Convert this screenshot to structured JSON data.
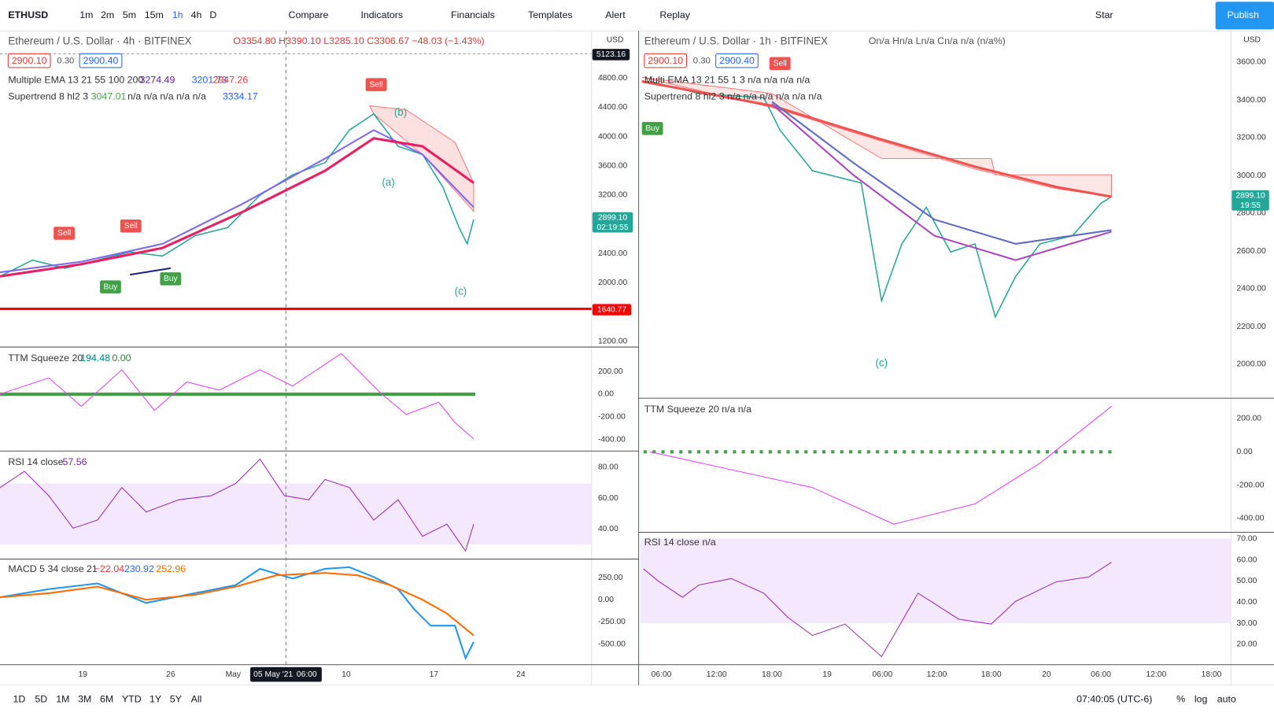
{
  "toolbar": {
    "symbol": "ETHUSD",
    "intervals": [
      "1m",
      "2m",
      "5m",
      "15m",
      "1h",
      "4h",
      "D"
    ],
    "buttons": [
      "Compare",
      "Indicators",
      "Financials",
      "Templates",
      "Alert",
      "Replay",
      "Star",
      "Publish"
    ]
  },
  "left": {
    "header": "Ethereum / U.S. Dollar · 4h · BITFINEX",
    "ohlc": "O3354.80 H3390.10 L3285.10 C3306.67 −48.03 (−1.43%)",
    "bid": "2900.10",
    "spread": "0.30",
    "ask": "2900.40",
    "ema": {
      "label": "Multiple EMA 13 21 55 100 200",
      "values": [
        "3274.49",
        "3201.73",
        "2947.26"
      ]
    },
    "supertrend": {
      "label": "Supertrend 8 hl2 3",
      "values": [
        "3047.01",
        "n/a n/a n/a n/a n/a",
        "3334.17"
      ]
    },
    "currency": "USD",
    "price_ticks": [
      "4800.00",
      "4400.00",
      "4000.00",
      "3600.00",
      "3200.00",
      "2400.00",
      "2000.00",
      "1200.00"
    ],
    "tags": {
      "high": "5123.16",
      "price": "2899.10",
      "countdown": "02:19:55",
      "level": "1640.77"
    },
    "signals": [
      "Sell",
      "Sell",
      "Sell",
      "Buy",
      "Buy"
    ],
    "waves": [
      "(b)",
      "(a)",
      "(c)"
    ],
    "ttm": {
      "label": "TTM Squeeze 20",
      "values": [
        "194.48",
        "0.00"
      ],
      "ticks": [
        "200.00",
        "0.00",
        "-200.00",
        "-400.00"
      ]
    },
    "rsi": {
      "label": "RSI 14 close",
      "value": "57.56",
      "ticks": [
        "80.00",
        "60.00",
        "40.00"
      ]
    },
    "macd": {
      "label": "MACD 5 34 close 21",
      "values": [
        "−22.04",
        "230.92",
        "252.96"
      ],
      "ticks": [
        "250.00",
        "0.00",
        "-250.00",
        "-500.00"
      ]
    },
    "x_ticks": [
      "19",
      "26",
      "May",
      "10",
      "17",
      "24"
    ],
    "crosshair_date": "05 May '21",
    "crosshair_time": "06:00"
  },
  "right": {
    "header": "Ethereum / U.S. Dollar · 1h · BITFINEX",
    "ohlc": "On/a Hn/a Ln/a Cn/a n/a (n/a%)",
    "bid": "2900.10",
    "spread": "0.30",
    "ask": "2900.40",
    "ema": "Multi EMA 13 21 55 1 3  n/a n/a n/a n/a",
    "supertrend": "Supertrend 8 hl2 3  n/a n/a n/a n/a n/a n/a",
    "currency": "USD",
    "price_ticks": [
      "3600.00",
      "3400.00",
      "3200.00",
      "3000.00",
      "2800.00",
      "2600.00",
      "2400.00",
      "2200.00",
      "2000.00"
    ],
    "tags": {
      "price": "2899.10",
      "countdown": "19:55"
    },
    "signals": [
      "Sell",
      "Buy"
    ],
    "waves": [
      "(c)"
    ],
    "ttm": {
      "label": "TTM Squeeze 20  n/a  n/a",
      "ticks": [
        "200.00",
        "0.00",
        "-200.00",
        "-400.00"
      ]
    },
    "rsi": {
      "label": "RSI 14 close  n/a",
      "ticks": [
        "70.00",
        "60.00",
        "50.00",
        "40.00",
        "30.00",
        "20.00"
      ]
    },
    "x_ticks": [
      "06:00",
      "12:00",
      "18:00",
      "19",
      "06:00",
      "12:00",
      "18:00",
      "20",
      "06:00",
      "12:00",
      "18:00"
    ]
  },
  "footer": {
    "ranges": [
      "1D",
      "5D",
      "1M",
      "3M",
      "6M",
      "YTD",
      "1Y",
      "5Y",
      "All"
    ],
    "time": "07:40:05 (UTC-6)",
    "options": [
      "%",
      "log",
      "auto"
    ]
  }
}
